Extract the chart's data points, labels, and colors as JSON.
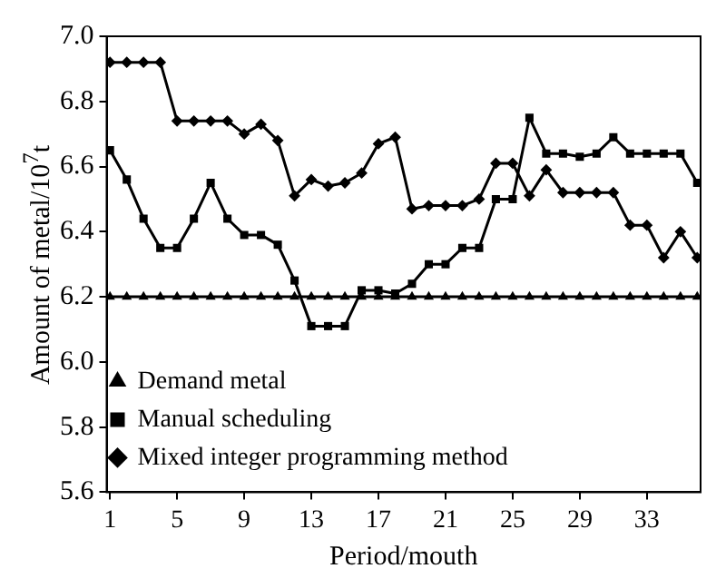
{
  "chart_data": {
    "type": "line",
    "xlabel": "Period/mouth",
    "ylabel": "Amount of metal/10$^{7}$t",
    "x": [
      1,
      2,
      3,
      4,
      5,
      6,
      7,
      8,
      9,
      10,
      11,
      12,
      13,
      14,
      15,
      16,
      17,
      18,
      19,
      20,
      21,
      22,
      23,
      24,
      25,
      26,
      27,
      28,
      29,
      30,
      31,
      32,
      33,
      34,
      35,
      36
    ],
    "xlim": [
      0.8,
      36.2
    ],
    "xticks": [
      1,
      5,
      9,
      13,
      17,
      21,
      25,
      29,
      33
    ],
    "ylim": [
      5.6,
      7.0
    ],
    "yticks": [
      5.6,
      5.8,
      {
        "value": 6.0,
        "label": "6.0"
      },
      6.2,
      6.4,
      6.6,
      6.8,
      {
        "value": 7.0,
        "label": "7.0"
      }
    ],
    "grid": false,
    "legend": "bottom left",
    "line_style": "solid",
    "series": [
      {
        "name": "Mixed integer programming method",
        "color": "#000000",
        "marker": "diamond",
        "values": [
          6.92,
          6.92,
          6.92,
          6.92,
          6.74,
          6.74,
          6.74,
          6.74,
          6.7,
          6.73,
          6.68,
          6.51,
          6.56,
          6.54,
          6.55,
          6.58,
          6.67,
          6.69,
          6.47,
          6.48,
          6.48,
          6.48,
          6.5,
          6.61,
          6.61,
          6.51,
          6.59,
          6.52,
          6.52,
          6.52,
          6.52,
          6.42,
          6.42,
          6.32,
          6.4,
          6.32
        ]
      },
      {
        "name": "Manual scheduling",
        "color": "#000000",
        "marker": "square",
        "values": [
          6.65,
          6.56,
          6.44,
          6.35,
          6.35,
          6.44,
          6.55,
          6.44,
          6.39,
          6.39,
          6.36,
          6.25,
          6.11,
          6.11,
          6.11,
          6.22,
          6.22,
          6.21,
          6.24,
          6.3,
          6.3,
          6.35,
          6.35,
          6.5,
          6.5,
          6.75,
          6.64,
          6.64,
          6.63,
          6.64,
          6.69,
          6.64,
          6.64,
          6.64,
          6.64,
          6.55
        ]
      },
      {
        "name": "Demand metal",
        "color": "#000000",
        "marker": "triangle",
        "values": [
          6.2,
          6.2,
          6.2,
          6.2,
          6.2,
          6.2,
          6.2,
          6.2,
          6.2,
          6.2,
          6.2,
          6.2,
          6.2,
          6.2,
          6.2,
          6.2,
          6.2,
          6.2,
          6.2,
          6.2,
          6.2,
          6.2,
          6.2,
          6.2,
          6.2,
          6.2,
          6.2,
          6.2,
          6.2,
          6.2,
          6.2,
          6.2,
          6.2,
          6.2,
          6.2,
          6.2
        ]
      }
    ]
  }
}
